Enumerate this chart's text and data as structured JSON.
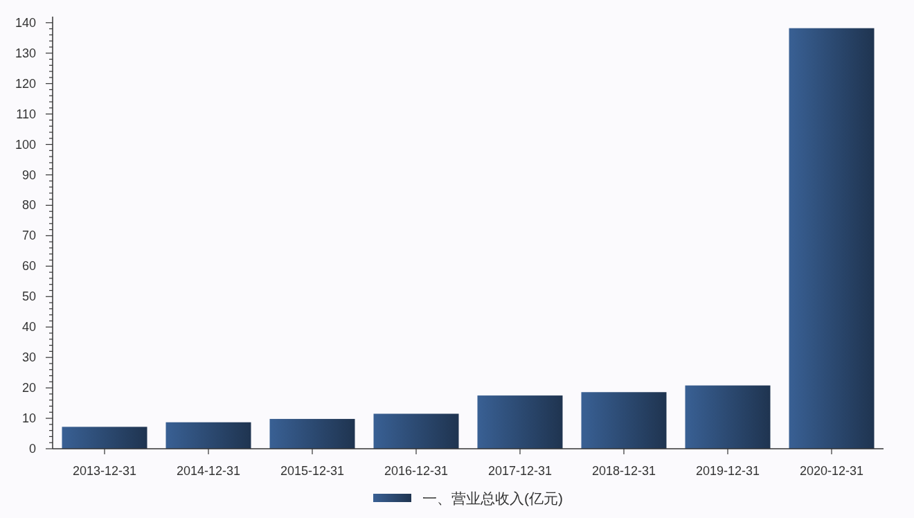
{
  "chart_data": {
    "type": "bar",
    "categories": [
      "2013-12-31",
      "2014-12-31",
      "2015-12-31",
      "2016-12-31",
      "2017-12-31",
      "2018-12-31",
      "2019-12-31",
      "2020-12-31"
    ],
    "series": [
      {
        "name": "一、营业总收入(亿元)",
        "color": "#2c4a72",
        "values": [
          7.2,
          8.7,
          9.8,
          11.5,
          17.5,
          18.6,
          20.8,
          138.2
        ]
      }
    ],
    "ylim": [
      0,
      142
    ],
    "yticks": [
      0,
      {
        "value": 2,
        "label": null
      },
      {
        "value": 4,
        "label": null
      },
      {
        "value": 6,
        "label": null
      },
      {
        "value": 8,
        "label": null
      },
      10,
      {
        "value": 12,
        "label": null
      },
      {
        "value": 14,
        "label": null
      },
      {
        "value": 16,
        "label": null
      },
      {
        "value": 18,
        "label": null
      },
      20,
      {
        "value": 22,
        "label": null
      },
      {
        "value": 24,
        "label": null
      },
      {
        "value": 26,
        "label": null
      },
      {
        "value": 28,
        "label": null
      },
      30,
      {
        "value": 32,
        "label": null
      },
      {
        "value": 34,
        "label": null
      },
      {
        "value": 36,
        "label": null
      },
      {
        "value": 38,
        "label": null
      },
      40,
      {
        "value": 42,
        "label": null
      },
      {
        "value": 44,
        "label": null
      },
      {
        "value": 46,
        "label": null
      },
      {
        "value": 48,
        "label": null
      },
      50,
      {
        "value": 52,
        "label": null
      },
      {
        "value": 54,
        "label": null
      },
      {
        "value": 56,
        "label": null
      },
      {
        "value": 58,
        "label": null
      },
      60,
      {
        "value": 62,
        "label": null
      },
      {
        "value": 64,
        "label": null
      },
      {
        "value": 66,
        "label": null
      },
      {
        "value": 68,
        "label": null
      },
      70,
      {
        "value": 72,
        "label": null
      },
      {
        "value": 74,
        "label": null
      },
      {
        "value": 76,
        "label": null
      },
      {
        "value": 78,
        "label": null
      },
      80,
      {
        "value": 82,
        "label": null
      },
      {
        "value": 84,
        "label": null
      },
      {
        "value": 86,
        "label": null
      },
      {
        "value": 88,
        "label": null
      },
      90,
      {
        "value": 92,
        "label": null
      },
      {
        "value": 94,
        "label": null
      },
      {
        "value": 96,
        "label": null
      },
      {
        "value": 98,
        "label": null
      },
      100,
      {
        "value": 102,
        "label": null
      },
      {
        "value": 104,
        "label": null
      },
      {
        "value": 106,
        "label": null
      },
      {
        "value": 108,
        "label": null
      },
      110,
      {
        "value": 112,
        "label": null
      },
      {
        "value": 114,
        "label": null
      },
      {
        "value": 116,
        "label": null
      },
      {
        "value": 118,
        "label": null
      },
      120,
      {
        "value": 122,
        "label": null
      },
      {
        "value": 124,
        "label": null
      },
      {
        "value": 126,
        "label": null
      },
      {
        "value": 128,
        "label": null
      },
      130,
      {
        "value": 132,
        "label": null
      },
      {
        "value": 134,
        "label": null
      },
      {
        "value": 136,
        "label": null
      },
      {
        "value": 138,
        "label": null
      },
      140
    ],
    "legend": "bottom"
  }
}
